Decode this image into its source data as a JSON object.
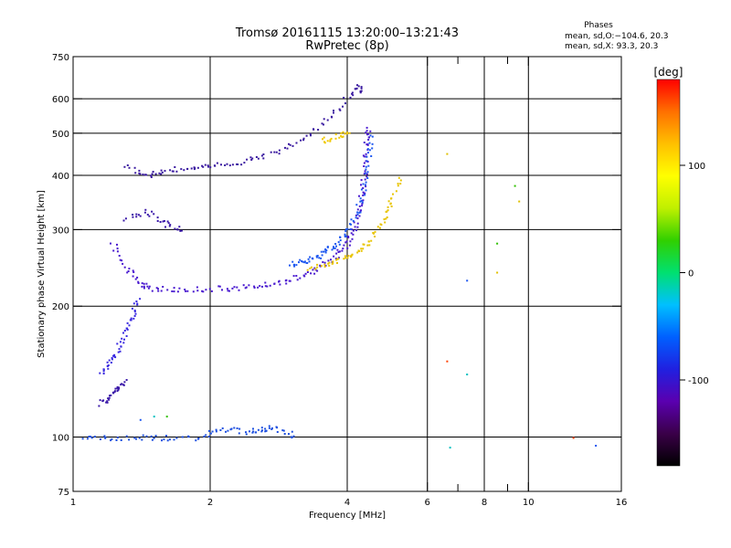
{
  "chart_data": {
    "type": "scatter",
    "title": "Tromsø 20161115 13:20:00–13:21:43",
    "subtitle": "RwPretec (8p)",
    "xlabel": "Frequency [MHz]",
    "ylabel": "Stationary phase Virtual Height [km]",
    "x_scale": "log2",
    "y_scale": "log",
    "xlim": [
      1,
      16
    ],
    "ylim": [
      75,
      750
    ],
    "x_ticks": [
      1,
      2,
      4,
      6,
      8,
      10,
      16
    ],
    "x_minor_ticks": [
      7,
      9
    ],
    "y_ticks": [
      75,
      100,
      200,
      300,
      400,
      500,
      600,
      750
    ],
    "grid": true,
    "legend": {
      "title": "Phases",
      "lines": [
        "mean, sd,O:−104.6, 20.3",
        "mean, sd,X:  93.3, 20.3"
      ]
    },
    "colorbar": {
      "label": "[deg]",
      "range": [
        -180,
        180
      ],
      "ticks": [
        100,
        0,
        -100
      ],
      "colors": [
        "#000000",
        "#3a0048",
        "#5a00b0",
        "#2020e0",
        "#0060ff",
        "#00c0ff",
        "#00e070",
        "#30d000",
        "#c0f000",
        "#ffff00",
        "#ffc000",
        "#ff7000",
        "#ff0000"
      ]
    },
    "series": [
      {
        "color": "#4a1ad0",
        "points": [
          [
            1.22,
            280
          ],
          [
            1.3,
            245
          ],
          [
            1.4,
            226
          ],
          [
            1.5,
            220
          ],
          [
            1.7,
            219
          ],
          [
            2.0,
            220
          ],
          [
            2.3,
            221
          ],
          [
            2.6,
            224
          ],
          [
            2.9,
            229
          ],
          [
            3.2,
            236
          ],
          [
            3.5,
            248
          ],
          [
            3.8,
            265
          ],
          [
            4.0,
            282
          ],
          [
            4.15,
            305
          ],
          [
            4.25,
            340
          ],
          [
            4.32,
            380
          ],
          [
            4.37,
            430
          ],
          [
            4.4,
            480
          ],
          [
            4.42,
            520
          ]
        ]
      },
      {
        "color": "#3a2ae0",
        "points": [
          [
            1.15,
            140
          ],
          [
            1.2,
            150
          ],
          [
            1.25,
            160
          ],
          [
            1.3,
            175
          ],
          [
            1.35,
            190
          ],
          [
            1.38,
            210
          ]
        ]
      },
      {
        "color": "#3a18a8",
        "points": [
          [
            1.15,
            120
          ],
          [
            1.2,
            125
          ],
          [
            1.25,
            130
          ],
          [
            1.3,
            135
          ]
        ]
      },
      {
        "color": "#3a1aa0",
        "points": [
          [
            1.3,
            420
          ],
          [
            1.45,
            400
          ],
          [
            1.6,
            410
          ],
          [
            1.8,
            420
          ],
          [
            2.0,
            425
          ],
          [
            2.3,
            430
          ],
          [
            2.6,
            445
          ],
          [
            3.0,
            470
          ],
          [
            3.4,
            510
          ],
          [
            3.8,
            570
          ],
          [
            4.2,
            640
          ],
          [
            4.3,
            630
          ]
        ]
      },
      {
        "color": "#1e58f0",
        "points": [
          [
            3.0,
            250
          ],
          [
            3.2,
            255
          ],
          [
            3.4,
            260
          ],
          [
            3.6,
            270
          ],
          [
            3.8,
            280
          ],
          [
            4.0,
            300
          ],
          [
            4.2,
            330
          ],
          [
            4.35,
            380
          ],
          [
            4.45,
            440
          ],
          [
            4.5,
            500
          ]
        ]
      },
      {
        "color": "#e8c400",
        "points": [
          [
            3.3,
            246
          ],
          [
            3.6,
            250
          ],
          [
            3.9,
            258
          ],
          [
            4.2,
            268
          ],
          [
            4.5,
            285
          ],
          [
            4.8,
            320
          ],
          [
            5.0,
            350
          ],
          [
            5.2,
            400
          ]
        ]
      },
      {
        "color": "#f0c800",
        "points": [
          [
            3.5,
            480
          ],
          [
            3.8,
            495
          ],
          [
            4.0,
            500
          ]
        ]
      },
      {
        "color": "#3a18a8",
        "points": [
          [
            1.3,
            320
          ],
          [
            1.45,
            330
          ],
          [
            1.6,
            310
          ],
          [
            1.75,
            300
          ]
        ]
      },
      {
        "color": "#1e50e0",
        "points": [
          [
            1.05,
            100
          ],
          [
            1.2,
            100
          ],
          [
            1.4,
            100
          ],
          [
            1.6,
            100
          ],
          [
            1.9,
            100
          ],
          [
            2.1,
            105
          ],
          [
            2.4,
            103
          ],
          [
            2.6,
            105
          ],
          [
            2.8,
            105
          ],
          [
            3.1,
            100
          ]
        ]
      }
    ],
    "extra_points": [
      [
        1.4,
        110
      ],
      [
        1.5,
        112
      ],
      [
        1.6,
        112
      ],
      [
        6.6,
        450
      ],
      [
        6.6,
        150
      ],
      [
        7.3,
        230
      ],
      [
        7.3,
        140
      ],
      [
        9.3,
        380
      ],
      [
        9.5,
        350
      ],
      [
        12.5,
        100
      ],
      [
        14.0,
        96
      ],
      [
        6.7,
        95
      ],
      [
        8.5,
        280
      ],
      [
        8.5,
        240
      ]
    ]
  }
}
